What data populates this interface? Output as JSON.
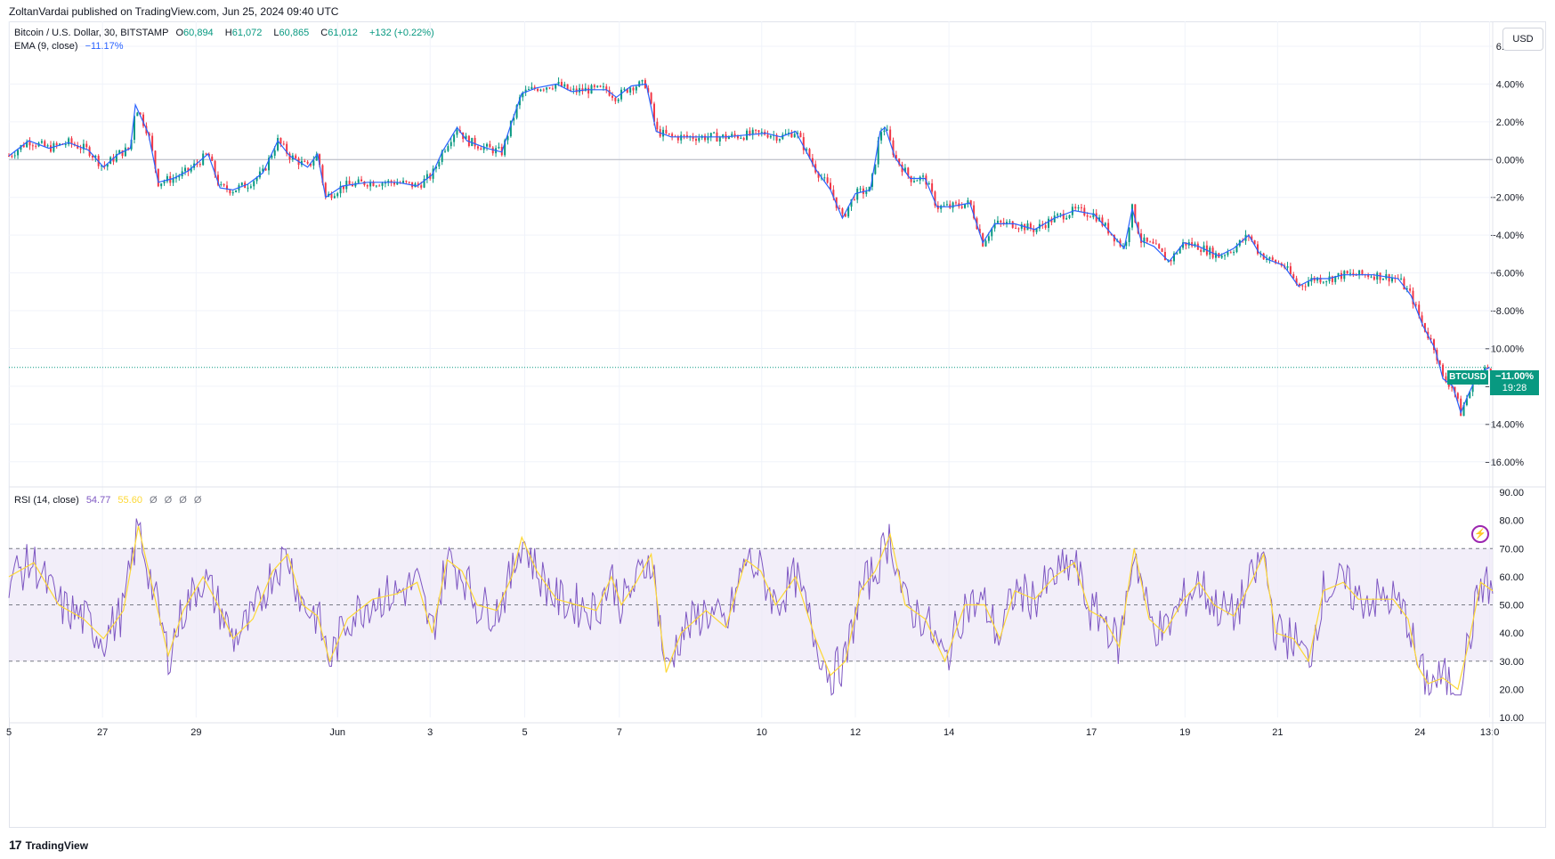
{
  "published": "ZoltanVardai published on TradingView.com, Jun 25, 2024 09:40 UTC",
  "legend": {
    "symbol": "Bitcoin / U.S. Dollar, 30, BITSTAMP",
    "open_label": "O",
    "open": "60,894",
    "high_label": "H",
    "high": "61,072",
    "low_label": "L",
    "low": "60,865",
    "close_label": "C",
    "close": "61,012",
    "change": "+132 (+0.22%)",
    "ema_label": "EMA (9, close)",
    "ema_value": "−11.17%",
    "rsi_label": "RSI (14, close)",
    "rsi_value": "54.77",
    "rsi_ma": "55.60",
    "rsi_extra": [
      "Ø",
      "Ø",
      "Ø",
      "Ø"
    ]
  },
  "currency_button": "USD",
  "price_tag": {
    "symbol": "BTCUSD",
    "value": "−11.00%",
    "countdown": "19:28"
  },
  "branding": {
    "logo_mark": "17",
    "name": "TradingView"
  },
  "colors": {
    "up": "#089981",
    "down": "#f23645",
    "ema": "#2962ff",
    "rsi": "#7e57c2",
    "rsi_ma": "#fdd835",
    "rsi_band": "#ede7f6"
  },
  "chart_data": [
    {
      "type": "line",
      "ylabel": "",
      "ylim": [
        -17,
        6
      ],
      "y_ticks": [
        "6.00%",
        "4.00%",
        "2.00%",
        "0.00%",
        "−2.00%",
        "−4.00%",
        "−6.00%",
        "−8.00%",
        "−10.00%",
        "−12.00%",
        "−14.00%",
        "−16.00%"
      ],
      "y_tick_values": [
        6,
        4,
        2,
        0,
        -2,
        -4,
        -6,
        -8,
        -10,
        -12,
        -14,
        -16
      ],
      "x_ticks": [
        "5",
        "27",
        "29",
        "Jun",
        "3",
        "5",
        "7",
        "10",
        "12",
        "14",
        "17",
        "19",
        "21",
        "24",
        "13:0"
      ],
      "x_tick_values": [
        0,
        94,
        188,
        330,
        423,
        518,
        613,
        756,
        850,
        944,
        1087,
        1181,
        1274,
        1417,
        1487
      ],
      "x_range": [
        0,
        1490
      ],
      "grid": true,
      "baseline": 0,
      "last_value": -11.0,
      "price_path": [
        [
          0,
          0.2
        ],
        [
          20,
          1.0
        ],
        [
          40,
          0.6
        ],
        [
          60,
          0.9
        ],
        [
          80,
          0.5
        ],
        [
          95,
          -0.4
        ],
        [
          110,
          0.3
        ],
        [
          122,
          0.6
        ],
        [
          127,
          2.9
        ],
        [
          140,
          1.4
        ],
        [
          150,
          -1.2
        ],
        [
          165,
          -1.0
        ],
        [
          180,
          -0.6
        ],
        [
          200,
          0.3
        ],
        [
          212,
          -1.5
        ],
        [
          225,
          -1.6
        ],
        [
          240,
          -1.3
        ],
        [
          255,
          -0.7
        ],
        [
          270,
          1.0
        ],
        [
          282,
          0.2
        ],
        [
          300,
          -0.4
        ],
        [
          310,
          0.3
        ],
        [
          318,
          -2.0
        ],
        [
          335,
          -1.4
        ],
        [
          360,
          -1.2
        ],
        [
          390,
          -1.2
        ],
        [
          410,
          -1.4
        ],
        [
          425,
          -0.8
        ],
        [
          435,
          0.4
        ],
        [
          450,
          1.7
        ],
        [
          460,
          1.0
        ],
        [
          480,
          0.6
        ],
        [
          495,
          0.4
        ],
        [
          505,
          2.0
        ],
        [
          515,
          3.5
        ],
        [
          530,
          3.8
        ],
        [
          550,
          4.0
        ],
        [
          565,
          3.6
        ],
        [
          580,
          3.7
        ],
        [
          600,
          3.7
        ],
        [
          610,
          3.3
        ],
        [
          625,
          3.9
        ],
        [
          640,
          4.0
        ],
        [
          650,
          1.5
        ],
        [
          665,
          1.2
        ],
        [
          690,
          1.2
        ],
        [
          720,
          1.2
        ],
        [
          740,
          1.3
        ],
        [
          760,
          1.4
        ],
        [
          775,
          1.2
        ],
        [
          790,
          1.5
        ],
        [
          810,
          -0.5
        ],
        [
          825,
          -1.6
        ],
        [
          837,
          -3.1
        ],
        [
          850,
          -1.8
        ],
        [
          865,
          -1.6
        ],
        [
          875,
          1.5
        ],
        [
          880,
          1.7
        ],
        [
          890,
          0.1
        ],
        [
          905,
          -1.0
        ],
        [
          920,
          -1.0
        ],
        [
          932,
          -2.5
        ],
        [
          945,
          -2.5
        ],
        [
          965,
          -2.3
        ],
        [
          978,
          -4.4
        ],
        [
          990,
          -3.4
        ],
        [
          1010,
          -3.4
        ],
        [
          1030,
          -3.7
        ],
        [
          1050,
          -3.1
        ],
        [
          1070,
          -2.7
        ],
        [
          1090,
          -2.9
        ],
        [
          1105,
          -3.8
        ],
        [
          1120,
          -4.7
        ],
        [
          1128,
          -2.6
        ],
        [
          1137,
          -4.3
        ],
        [
          1150,
          -4.6
        ],
        [
          1165,
          -5.4
        ],
        [
          1180,
          -4.4
        ],
        [
          1195,
          -4.6
        ],
        [
          1215,
          -5.1
        ],
        [
          1230,
          -4.7
        ],
        [
          1245,
          -4.0
        ],
        [
          1255,
          -4.9
        ],
        [
          1265,
          -5.3
        ],
        [
          1280,
          -5.6
        ],
        [
          1295,
          -6.7
        ],
        [
          1310,
          -6.3
        ],
        [
          1325,
          -6.3
        ],
        [
          1340,
          -6.1
        ],
        [
          1370,
          -6.1
        ],
        [
          1395,
          -6.3
        ],
        [
          1408,
          -7.2
        ],
        [
          1420,
          -8.8
        ],
        [
          1432,
          -10.0
        ],
        [
          1440,
          -11.6
        ],
        [
          1450,
          -12.0
        ],
        [
          1458,
          -13.4
        ],
        [
          1465,
          -12.5
        ],
        [
          1473,
          -11.6
        ],
        [
          1480,
          -11.2
        ],
        [
          1487,
          -11.0
        ]
      ]
    },
    {
      "type": "line",
      "title": "",
      "ylim": [
        10,
        90
      ],
      "y_ticks": [
        "90.00",
        "80.00",
        "70.00",
        "60.00",
        "50.00",
        "40.00",
        "30.00",
        "20.00",
        "10.00"
      ],
      "y_tick_values": [
        90,
        80,
        70,
        60,
        50,
        40,
        30,
        20,
        10
      ],
      "bands": {
        "upper": 70,
        "middle": 50,
        "lower": 30
      },
      "x_range": [
        0,
        1490
      ],
      "rsi_path": [
        [
          0,
          60
        ],
        [
          25,
          65
        ],
        [
          50,
          50
        ],
        [
          75,
          45
        ],
        [
          95,
          38
        ],
        [
          115,
          48
        ],
        [
          130,
          78
        ],
        [
          145,
          55
        ],
        [
          160,
          32
        ],
        [
          175,
          48
        ],
        [
          195,
          60
        ],
        [
          210,
          50
        ],
        [
          225,
          38
        ],
        [
          245,
          45
        ],
        [
          265,
          62
        ],
        [
          280,
          68
        ],
        [
          295,
          50
        ],
        [
          310,
          46
        ],
        [
          322,
          30
        ],
        [
          340,
          45
        ],
        [
          365,
          52
        ],
        [
          390,
          54
        ],
        [
          410,
          58
        ],
        [
          425,
          40
        ],
        [
          440,
          66
        ],
        [
          455,
          62
        ],
        [
          470,
          50
        ],
        [
          490,
          48
        ],
        [
          505,
          60
        ],
        [
          515,
          74
        ],
        [
          530,
          62
        ],
        [
          550,
          52
        ],
        [
          570,
          50
        ],
        [
          590,
          48
        ],
        [
          605,
          60
        ],
        [
          615,
          50
        ],
        [
          630,
          58
        ],
        [
          645,
          68
        ],
        [
          660,
          26
        ],
        [
          675,
          40
        ],
        [
          700,
          48
        ],
        [
          720,
          42
        ],
        [
          740,
          66
        ],
        [
          755,
          62
        ],
        [
          770,
          50
        ],
        [
          790,
          60
        ],
        [
          810,
          38
        ],
        [
          825,
          25
        ],
        [
          840,
          30
        ],
        [
          855,
          55
        ],
        [
          870,
          62
        ],
        [
          885,
          75
        ],
        [
          900,
          50
        ],
        [
          920,
          45
        ],
        [
          940,
          30
        ],
        [
          960,
          50
        ],
        [
          980,
          50
        ],
        [
          995,
          38
        ],
        [
          1010,
          55
        ],
        [
          1030,
          52
        ],
        [
          1050,
          60
        ],
        [
          1070,
          65
        ],
        [
          1085,
          48
        ],
        [
          1100,
          45
        ],
        [
          1115,
          35
        ],
        [
          1130,
          70
        ],
        [
          1145,
          45
        ],
        [
          1160,
          40
        ],
        [
          1180,
          52
        ],
        [
          1195,
          58
        ],
        [
          1210,
          50
        ],
        [
          1230,
          46
        ],
        [
          1250,
          60
        ],
        [
          1260,
          68
        ],
        [
          1272,
          40
        ],
        [
          1290,
          38
        ],
        [
          1305,
          30
        ],
        [
          1320,
          55
        ],
        [
          1340,
          58
        ],
        [
          1355,
          52
        ],
        [
          1375,
          52
        ],
        [
          1390,
          52
        ],
        [
          1405,
          45
        ],
        [
          1415,
          28
        ],
        [
          1425,
          22
        ],
        [
          1440,
          24
        ],
        [
          1455,
          20
        ],
        [
          1465,
          35
        ],
        [
          1478,
          58
        ],
        [
          1490,
          55
        ]
      ]
    }
  ]
}
